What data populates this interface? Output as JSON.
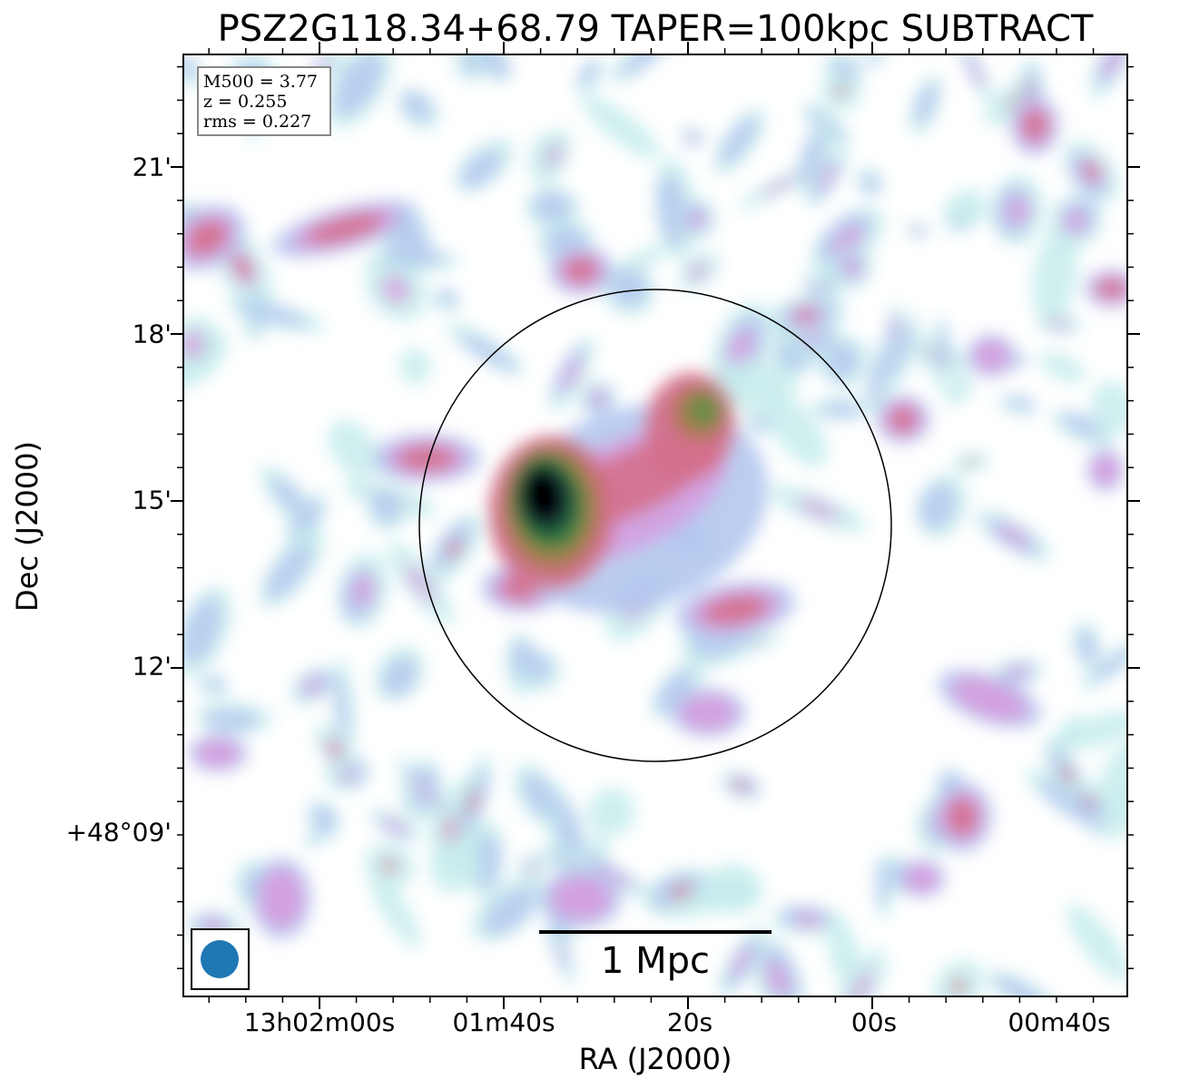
{
  "chart_data": {
    "type": "heatmap",
    "title": "PSZ2G118.34+68.79 TAPER=100kpc SUBTRACT",
    "xlabel": "RA (J2000)",
    "ylabel": "Dec (J2000)",
    "x_tick_labels": [
      "13h02m00s",
      "01m40s",
      "20s",
      "00s",
      "00m40s"
    ],
    "y_tick_labels": [
      "21'",
      "18'",
      "15'",
      "12'",
      "+48°09'"
    ],
    "colormap": [
      "#ffffff",
      "#c6ecec",
      "#b4c8f0",
      "#d4a0e0",
      "#d4708c",
      "#b07850",
      "#6e8c4a",
      "#1e6e3c",
      "#1a2a3a",
      "#000000"
    ],
    "info": {
      "m500": "M500 = 3.77",
      "z": "z = 0.255",
      "rms": "rms = 0.227"
    },
    "scale_bar": "1 Mpc",
    "circle": "R500 aperture",
    "beam": "restoring beam",
    "grid": false
  }
}
